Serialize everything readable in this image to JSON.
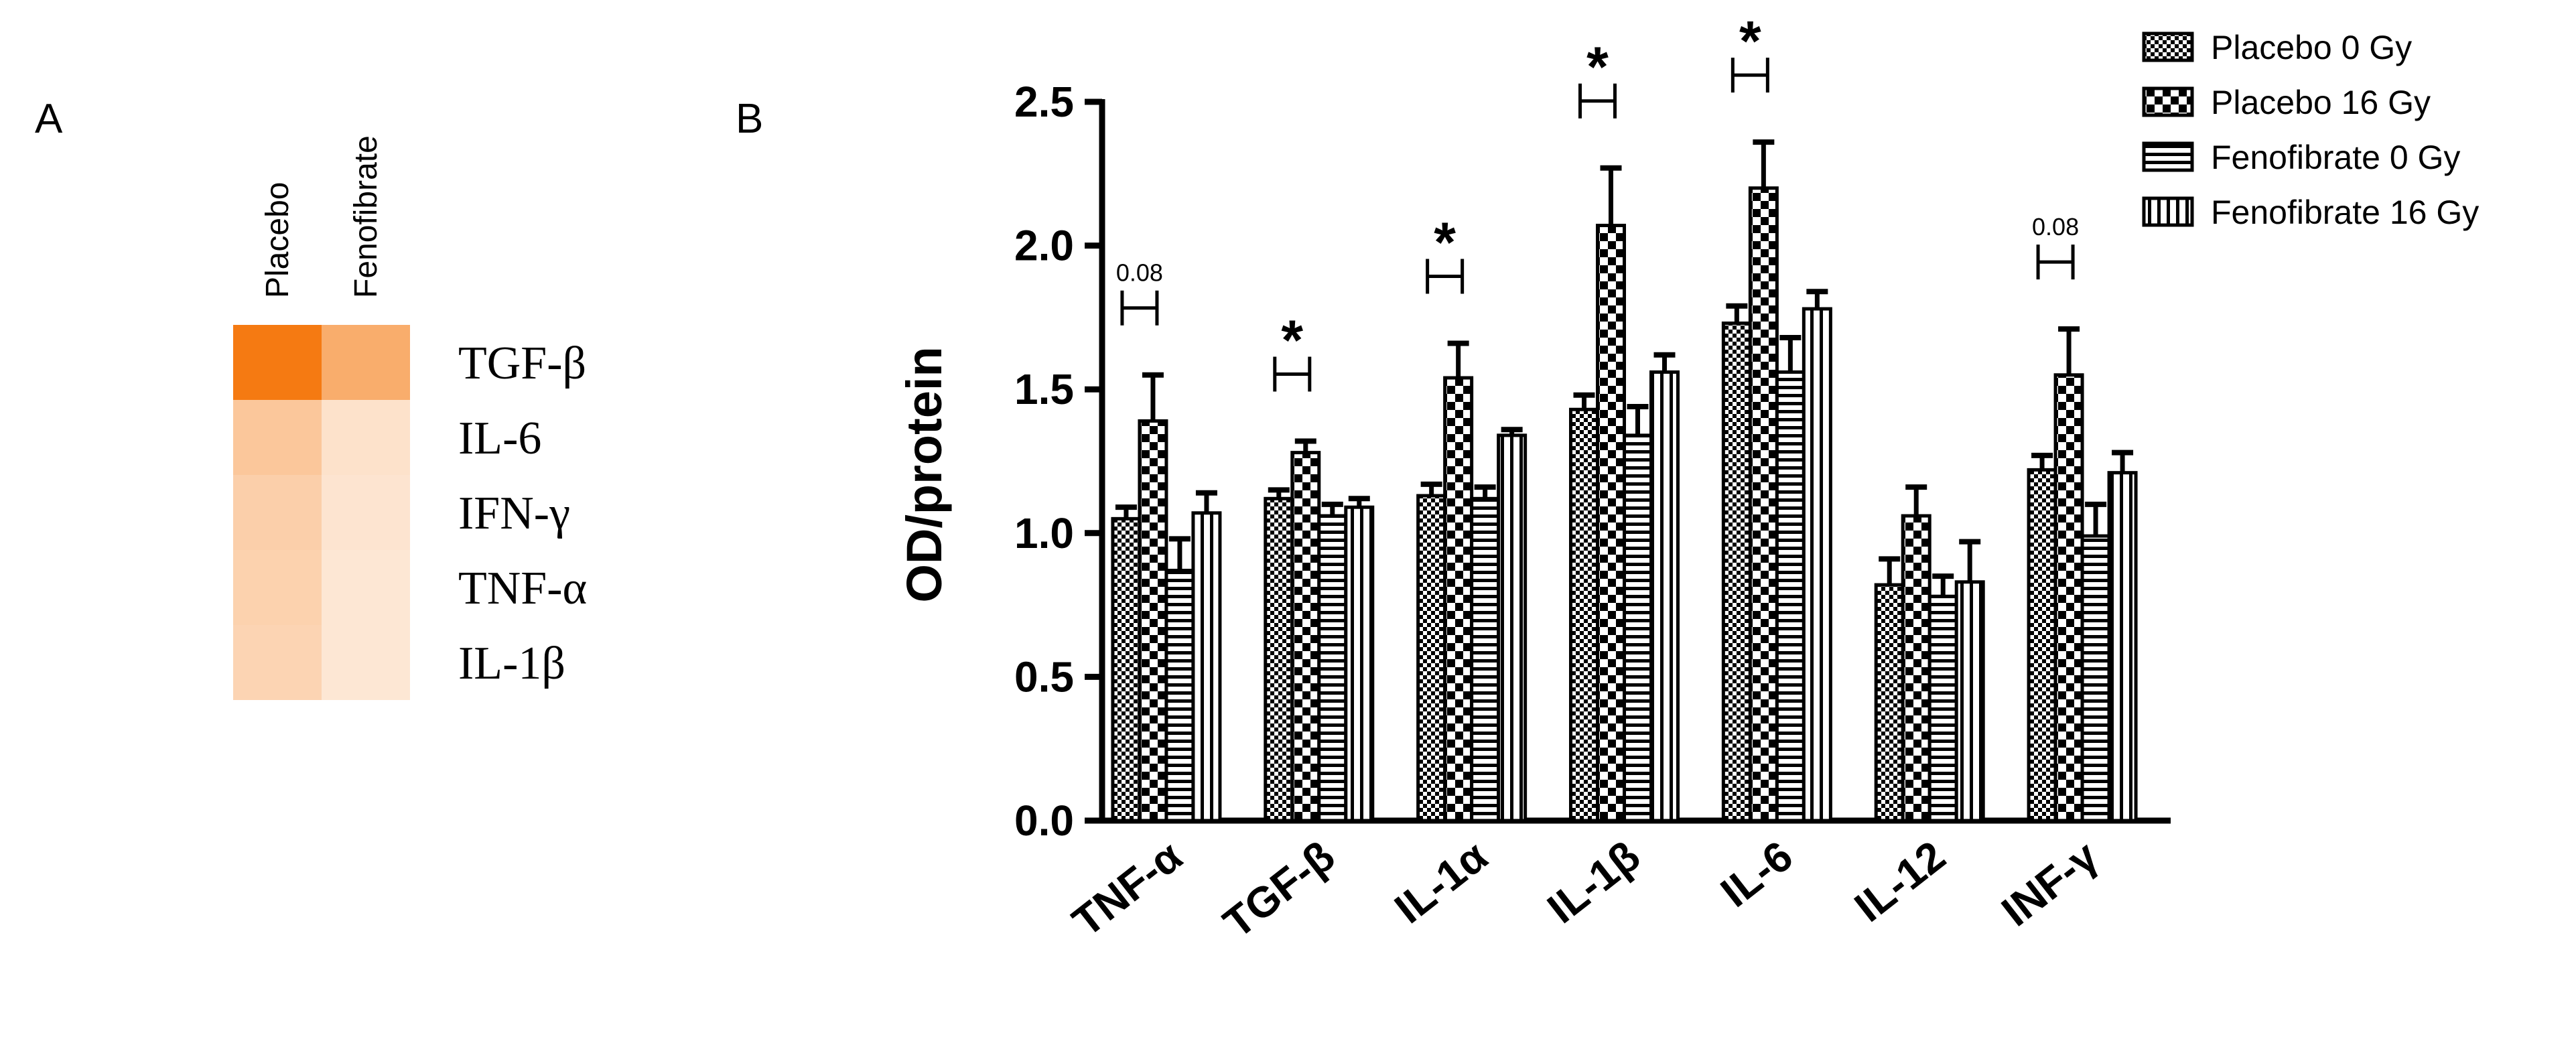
{
  "panels": {
    "a": "A",
    "b": "B"
  },
  "heatmap": {
    "columns": [
      "Placebo",
      "Fenofibrate"
    ],
    "rows": [
      "TGF-β",
      "IL-6",
      "IFN-γ",
      "TNF-α",
      "IL-1β"
    ],
    "intensity": [
      [
        1.0,
        0.62
      ],
      [
        0.42,
        0.22
      ],
      [
        0.36,
        0.2
      ],
      [
        0.34,
        0.18
      ],
      [
        0.32,
        0.18
      ]
    ],
    "color": "#f57a12"
  },
  "chart_data": {
    "type": "bar",
    "ylabel": "OD/protein",
    "ylim": [
      0,
      2.5
    ],
    "yticks": [
      "0.0",
      "0.5",
      "1.0",
      "1.5",
      "2.0",
      "2.5"
    ],
    "categories": [
      "TNF-α",
      "TGF-β",
      "IL-1α",
      "IL-1β",
      "IL-6",
      "IL-12",
      "INF-γ"
    ],
    "series": [
      {
        "name": "Placebo 0 Gy",
        "pattern": "dense-check",
        "values": [
          1.05,
          1.12,
          1.13,
          1.43,
          1.73,
          0.82,
          1.22
        ],
        "errors": [
          0.04,
          0.03,
          0.04,
          0.05,
          0.06,
          0.09,
          0.05
        ]
      },
      {
        "name": "Placebo 16 Gy",
        "pattern": "large-check",
        "values": [
          1.39,
          1.28,
          1.54,
          2.07,
          2.2,
          1.06,
          1.55
        ],
        "errors": [
          0.16,
          0.04,
          0.12,
          0.2,
          0.16,
          0.1,
          0.16
        ]
      },
      {
        "name": "Fenofibrate 0 Gy",
        "pattern": "horizontal",
        "values": [
          0.87,
          1.06,
          1.12,
          1.34,
          1.56,
          0.78,
          0.99
        ],
        "errors": [
          0.11,
          0.04,
          0.04,
          0.1,
          0.12,
          0.07,
          0.11
        ]
      },
      {
        "name": "Fenofibrate 16 Gy",
        "pattern": "vertical",
        "values": [
          1.07,
          1.09,
          1.34,
          1.56,
          1.78,
          0.83,
          1.21
        ],
        "errors": [
          0.07,
          0.03,
          0.02,
          0.06,
          0.06,
          0.14,
          0.07
        ]
      }
    ],
    "significance": [
      {
        "category": "TNF-α",
        "label": "0.08",
        "kind": "p"
      },
      {
        "category": "TGF-β",
        "label": "*",
        "kind": "star"
      },
      {
        "category": "IL-1α",
        "label": "*",
        "kind": "star"
      },
      {
        "category": "IL-1β",
        "label": "*",
        "kind": "star"
      },
      {
        "category": "IL-6",
        "label": "*",
        "kind": "star"
      },
      {
        "category": "INF-γ",
        "label": "0.08",
        "kind": "p"
      }
    ],
    "legend": "top-right",
    "grid": false
  }
}
